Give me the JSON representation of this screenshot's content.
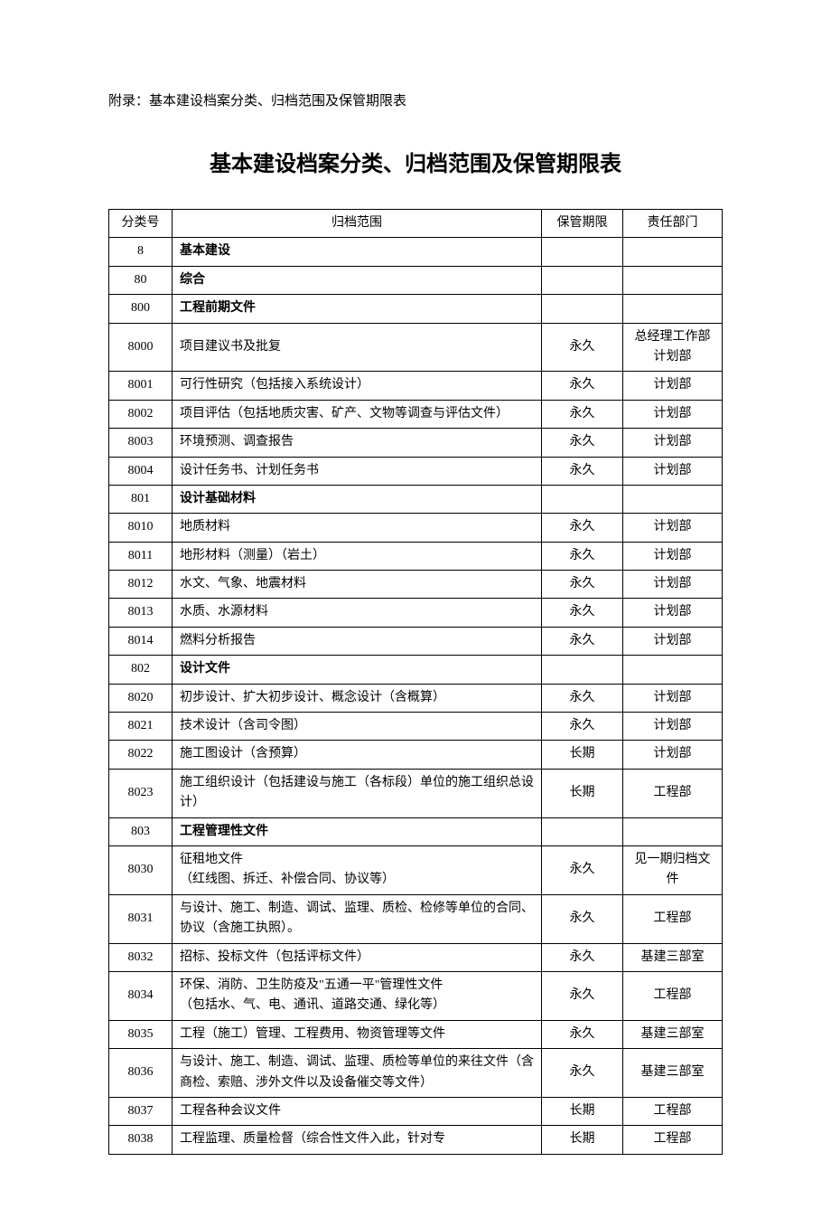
{
  "appendix_label": "附录：基本建设档案分类、归档范围及保管期限表",
  "title": "基本建设档案分类、归档范围及保管期限表",
  "headers": {
    "code": "分类号",
    "scope": "归档范围",
    "period": "保管期限",
    "dept": "责任部门"
  },
  "rows": [
    {
      "code": "8",
      "scope": "基本建设",
      "period": "",
      "dept": "",
      "bold": true
    },
    {
      "code": "80",
      "scope": "综合",
      "period": "",
      "dept": "",
      "bold": true
    },
    {
      "code": "800",
      "scope": "工程前期文件",
      "period": "",
      "dept": "",
      "bold": true
    },
    {
      "code": "8000",
      "scope": "项目建议书及批复",
      "period": "永久",
      "dept": "总经理工作部计划部",
      "bold": false
    },
    {
      "code": "8001",
      "scope": "可行性研究（包括接入系统设计）",
      "period": "永久",
      "dept": "计划部",
      "bold": false
    },
    {
      "code": "8002",
      "scope": "项目评估（包括地质灾害、矿产、文物等调查与评估文件）",
      "period": "永久",
      "dept": "计划部",
      "bold": false
    },
    {
      "code": "8003",
      "scope": "环境预测、调查报告",
      "period": "永久",
      "dept": "计划部",
      "bold": false
    },
    {
      "code": "8004",
      "scope": "设计任务书、计划任务书",
      "period": "永久",
      "dept": "计划部",
      "bold": false
    },
    {
      "code": "801",
      "scope": "设计基础材料",
      "period": "",
      "dept": "",
      "bold": true
    },
    {
      "code": "8010",
      "scope": "地质材料",
      "period": "永久",
      "dept": "计划部",
      "bold": false
    },
    {
      "code": "8011",
      "scope": "地形材料（测量）（岩土）",
      "period": "永久",
      "dept": "计划部",
      "bold": false
    },
    {
      "code": "8012",
      "scope": "水文、气象、地震材料",
      "period": "永久",
      "dept": "计划部",
      "bold": false
    },
    {
      "code": "8013",
      "scope": "水质、水源材料",
      "period": "永久",
      "dept": "计划部",
      "bold": false
    },
    {
      "code": "8014",
      "scope": "燃料分析报告",
      "period": "永久",
      "dept": "计划部",
      "bold": false
    },
    {
      "code": "802",
      "scope": "设计文件",
      "period": "",
      "dept": "",
      "bold": true
    },
    {
      "code": "8020",
      "scope": "初步设计、扩大初步设计、概念设计（含概算）",
      "period": "永久",
      "dept": "计划部",
      "bold": false
    },
    {
      "code": "8021",
      "scope": "技术设计（含司令图）",
      "period": "永久",
      "dept": "计划部",
      "bold": false
    },
    {
      "code": "8022",
      "scope": "施工图设计（含预算）",
      "period": "长期",
      "dept": "计划部",
      "bold": false
    },
    {
      "code": "8023",
      "scope": "施工组织设计（包括建设与施工（各标段）单位的施工组织总设计）",
      "period": "长期",
      "dept": "工程部",
      "bold": false
    },
    {
      "code": "803",
      "scope": "工程管理性文件",
      "period": "",
      "dept": "",
      "bold": true
    },
    {
      "code": "8030",
      "scope": "征租地文件\n（红线图、拆迁、补偿合同、协议等）",
      "period": "永久",
      "dept": "见一期归档文件",
      "bold": false
    },
    {
      "code": "8031",
      "scope": "与设计、施工、制造、调试、监理、质检、检修等单位的合同、协议（含施工执照）。",
      "period": "永久",
      "dept": "工程部",
      "bold": false
    },
    {
      "code": "8032",
      "scope": "招标、投标文件（包括评标文件）",
      "period": "永久",
      "dept": "基建三部室",
      "bold": false
    },
    {
      "code": "8034",
      "scope": "环保、消防、卫生防疫及\"五通一平\"管理性文件\n（包括水、气、电、通讯、道路交通、绿化等）",
      "period": "永久",
      "dept": "工程部",
      "bold": false
    },
    {
      "code": "8035",
      "scope": "工程（施工）管理、工程费用、物资管理等文件",
      "period": "永久",
      "dept": "基建三部室",
      "bold": false
    },
    {
      "code": "8036",
      "scope": "与设计、施工、制造、调试、监理、质检等单位的来往文件（含商检、索赔、涉外文件以及设备催交等文件）",
      "period": "永久",
      "dept": "基建三部室",
      "bold": false
    },
    {
      "code": "8037",
      "scope": "工程各种会议文件",
      "period": "长期",
      "dept": "工程部",
      "bold": false
    },
    {
      "code": "8038",
      "scope": "工程监理、质量检督（综合性文件入此，针对专",
      "period": "长期",
      "dept": "工程部",
      "bold": false
    }
  ]
}
